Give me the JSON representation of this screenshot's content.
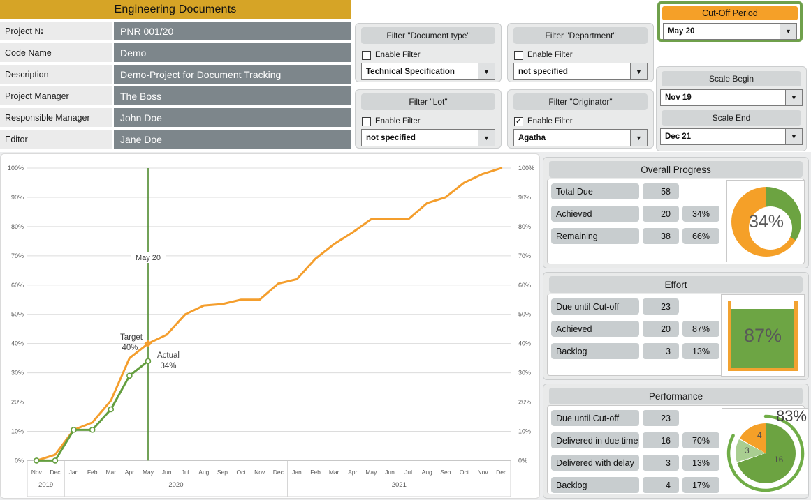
{
  "colors": {
    "gold": "#D6A426",
    "orange": "#F5A028",
    "chart_orange": "#F49E2D",
    "chart_green": "#649E3F",
    "cutoff_line_green": "#4F8A2E",
    "donut_green": "#6CA341",
    "light_green": "#A9CE91",
    "slate": "#7D868B",
    "axis_text": "#595959"
  },
  "project_info": {
    "title": "Engineering Documents",
    "rows": [
      {
        "label": "Project №",
        "value": "PNR 001/20"
      },
      {
        "label": "Code Name",
        "value": "Demo"
      },
      {
        "label": "Description",
        "value": "Demo-Project for Document Tracking"
      },
      {
        "label": "Project Manager",
        "value": "The Boss"
      },
      {
        "label": "Responsible Manager",
        "value": "John Doe"
      },
      {
        "label": "Editor",
        "value": "Jane Doe"
      }
    ]
  },
  "filters": [
    {
      "title": "Filter \"Document type\"",
      "checkbox_label": "Enable Filter",
      "enabled": false,
      "value": "Technical Specification"
    },
    {
      "title": "Filter \"Department\"",
      "checkbox_label": "Enable Filter",
      "enabled": false,
      "value": "not specified"
    },
    {
      "title": "Filter \"Lot\"",
      "checkbox_label": "Enable Filter",
      "enabled": false,
      "value": "not specified"
    },
    {
      "title": "Filter \"Originator\"",
      "checkbox_label": "Enable Filter",
      "enabled": true,
      "value": "Agatha"
    }
  ],
  "cutoff_panel": {
    "title": "Cut-Off Period",
    "value": "May 20"
  },
  "scale_panel": {
    "begin_label": "Scale Begin",
    "begin_value": "Nov 19",
    "end_label": "Scale End",
    "end_value": "Dec 21"
  },
  "overall_progress": {
    "title": "Overall Progress",
    "rows": [
      {
        "label": "Total Due",
        "value": "58",
        "pct": ""
      },
      {
        "label": "Achieved",
        "value": "20",
        "pct": "34%"
      },
      {
        "label": "Remaining",
        "value": "38",
        "pct": "66%"
      }
    ],
    "donut_pct": 34,
    "donut_label": "34%"
  },
  "effort": {
    "title": "Effort",
    "rows": [
      {
        "label": "Due until Cut-off",
        "value": "23",
        "pct": ""
      },
      {
        "label": "Achieved",
        "value": "20",
        "pct": "87%"
      },
      {
        "label": "Backlog",
        "value": "3",
        "pct": "13%"
      }
    ],
    "fill_pct": 87,
    "fill_label": "87%"
  },
  "performance": {
    "title": "Performance",
    "rows": [
      {
        "label": "Due until Cut-off",
        "value": "23",
        "pct": ""
      },
      {
        "label": "Delivered in due time",
        "value": "16",
        "pct": "70%"
      },
      {
        "label": "Delivered with delay",
        "value": "3",
        "pct": "13%"
      },
      {
        "label": "Backlog",
        "value": "4",
        "pct": "17%"
      }
    ],
    "pie": {
      "in_due_pct": 70,
      "delay_pct": 13,
      "backlog_pct": 17,
      "arc_pct": 83,
      "arc_label": "83%",
      "label_in_due": "16",
      "label_delay": "3",
      "label_backlog": "4"
    }
  },
  "chart_data": {
    "type": "line",
    "title": "",
    "xlabel": "",
    "ylabel": "",
    "ylim": [
      0,
      100
    ],
    "y_tick_step": 10,
    "grid": true,
    "months": [
      "Nov",
      "Dec",
      "Jan",
      "Feb",
      "Mar",
      "Apr",
      "May",
      "Jun",
      "Jul",
      "Aug",
      "Sep",
      "Oct",
      "Nov",
      "Dec",
      "Jan",
      "Feb",
      "Mar",
      "Apr",
      "May",
      "Jun",
      "Jul",
      "Aug",
      "Sep",
      "Oct",
      "Nov",
      "Dec"
    ],
    "year_groups": [
      {
        "label": "2019",
        "start": 0,
        "end": 1
      },
      {
        "label": "2020",
        "start": 2,
        "end": 13
      },
      {
        "label": "2021",
        "start": 14,
        "end": 25
      }
    ],
    "series": [
      {
        "name": "Target",
        "color": "#F49E2D",
        "values": [
          0,
          2,
          10.5,
          13,
          20.5,
          35,
          40,
          43,
          50,
          53,
          53.5,
          55,
          55,
          60.5,
          62,
          69,
          74,
          78,
          82.5,
          82.5,
          82.5,
          88,
          90,
          95,
          98,
          100
        ]
      },
      {
        "name": "Actual",
        "color": "#649E3F",
        "values": [
          0,
          0,
          10.5,
          10.5,
          17.5,
          29,
          34
        ]
      }
    ],
    "cutoff": {
      "index": 6,
      "label": "May 20"
    },
    "annotations": {
      "target_line1": "Target",
      "target_line2": "40%",
      "actual_line1": "Actual",
      "actual_line2": "34%"
    }
  }
}
